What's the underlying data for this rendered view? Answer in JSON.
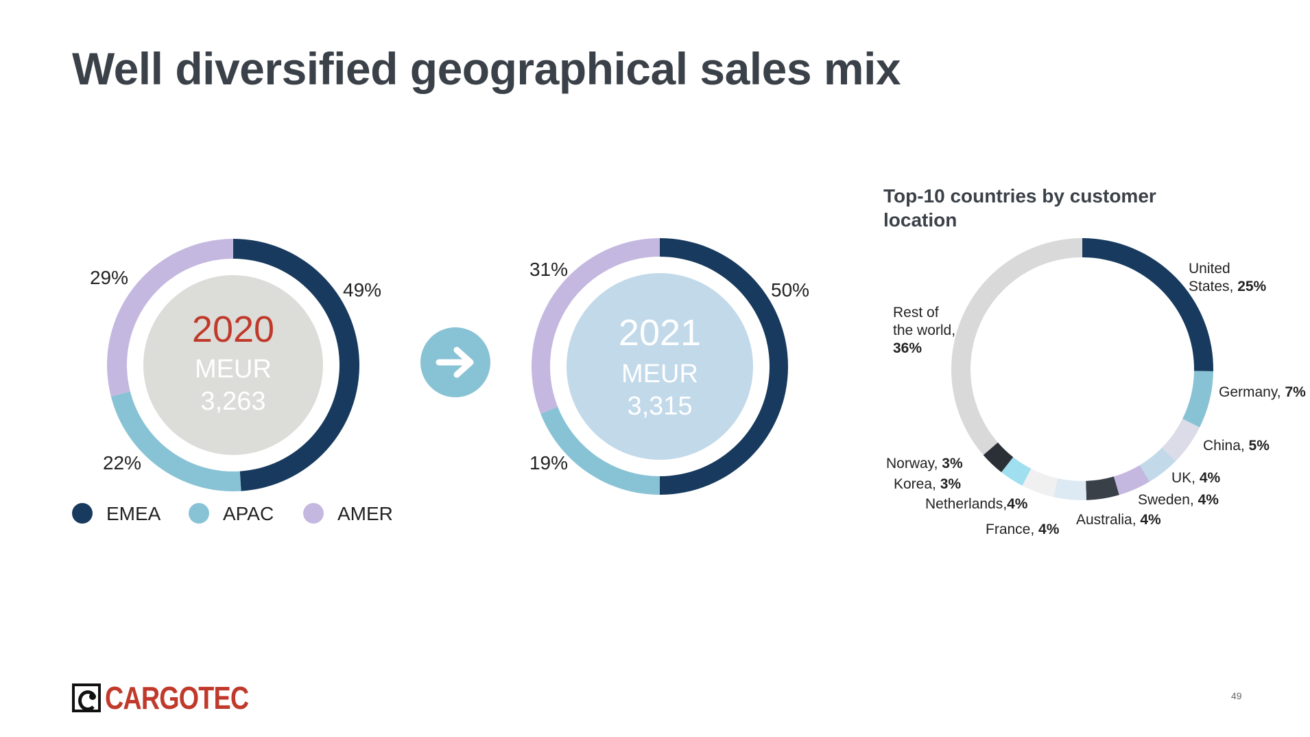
{
  "slide": {
    "title": "Well diversified geographical sales mix",
    "page_number": "49",
    "logo_text": "CARGOTEC"
  },
  "colors": {
    "EMEA": "#173a5e",
    "APAC": "#88c3d5",
    "AMER": "#c5b8e0",
    "center_2020": "#dcdcd8",
    "center_2021": "#c2d9ea",
    "arrow": "#88c3d5",
    "year_2020_text": "#c0392b",
    "rest_of_world": "#d9d9d9"
  },
  "chart_data": [
    {
      "type": "pie",
      "variant": "donut",
      "year": "2020",
      "unit": "MEUR",
      "total": "3,263",
      "slices": [
        {
          "name": "EMEA",
          "value": 49,
          "label": "49%"
        },
        {
          "name": "APAC",
          "value": 22,
          "label": "22%"
        },
        {
          "name": "AMER",
          "value": 29,
          "label": "29%"
        }
      ],
      "legend": [
        "EMEA",
        "APAC",
        "AMER"
      ],
      "legend_position": "bottom"
    },
    {
      "type": "pie",
      "variant": "donut",
      "year": "2021",
      "unit": "MEUR",
      "total": "3,315",
      "slices": [
        {
          "name": "EMEA",
          "value": 50,
          "label": "50%"
        },
        {
          "name": "APAC",
          "value": 19,
          "label": "19%"
        },
        {
          "name": "AMER",
          "value": 31,
          "label": "31%"
        }
      ]
    },
    {
      "type": "pie",
      "variant": "donut",
      "title": "Top-10 countries by customer location",
      "slices": [
        {
          "name": "United States",
          "label_name": "United States,",
          "value": 25,
          "label": "25%",
          "color": "#173a5e"
        },
        {
          "name": "Germany",
          "label_name": "Germany,",
          "value": 7,
          "label": "7%",
          "color": "#88c3d5"
        },
        {
          "name": "China",
          "label_name": "China,",
          "value": 5,
          "label": "5%",
          "color": "#dcdbe8"
        },
        {
          "name": "UK",
          "label_name": "UK,",
          "value": 4,
          "label": "4%",
          "color": "#c2d9ea"
        },
        {
          "name": "Sweden",
          "label_name": "Sweden,",
          "value": 4,
          "label": "4%",
          "color": "#c5b8e0"
        },
        {
          "name": "Australia",
          "label_name": "Australia,",
          "value": 4,
          "label": "4%",
          "color": "#3a4048"
        },
        {
          "name": "France",
          "label_name": "France,",
          "value": 4,
          "label": "4%",
          "color": "#dde9f3"
        },
        {
          "name": "Netherlands",
          "label_name": "Netherlands,",
          "value": 4,
          "label": "4%",
          "color": "#f0f0f0"
        },
        {
          "name": "Korea",
          "label_name": "Korea,",
          "value": 3,
          "label": "3%",
          "color": "#9fdff0"
        },
        {
          "name": "Norway",
          "label_name": "Norway,",
          "value": 3,
          "label": "3%",
          "color": "#2b2f36"
        },
        {
          "name": "Rest of the world",
          "label_name": "Rest of the world,",
          "value": 36,
          "label": "36%",
          "color": "#d9d9d9"
        }
      ]
    }
  ]
}
